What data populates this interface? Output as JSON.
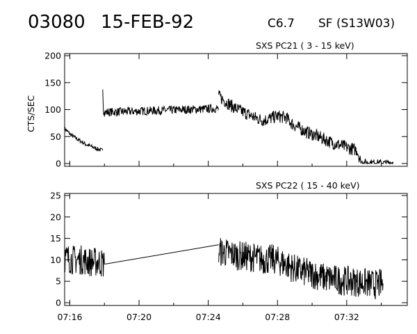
{
  "header": {
    "event_id": "03080",
    "date": "15-FEB-92",
    "goes_class": "C6.7",
    "location": "SF (S13W03)"
  },
  "chart_data": [
    {
      "type": "line",
      "title": "SXS PC21  (  3 - 15 keV)",
      "xlabel": "",
      "ylabel": "CTS/SEC",
      "xlim": [
        "07:15.7",
        "07:35.5"
      ],
      "ylim": [
        0,
        200
      ],
      "yticks": [
        "0",
        "50",
        "100",
        "150",
        "200"
      ],
      "xticks": [
        "07:16",
        "07:20",
        "07:24",
        "07:28",
        "07:32"
      ],
      "series": [
        {
          "segments": [
            {
              "x": [
                0.0,
                0.3,
                0.6,
                0.9,
                1.2,
                1.5,
                1.8,
                2.0,
                2.2
              ],
              "y": [
                65,
                55,
                48,
                42,
                36,
                32,
                28,
                26,
                24
              ]
            },
            {
              "x": [
                2.2,
                2.25,
                2.3
              ],
              "y": [
                140,
                95,
                95
              ]
            },
            {
              "x": [
                2.3,
                8.9
              ],
              "y": [
                95,
                102
              ]
            },
            {
              "x": [
                8.9,
                9.3,
                9.6,
                10.0,
                10.5,
                11.0,
                11.5,
                11.9,
                12.3,
                12.8,
                13.2,
                13.6,
                14.0,
                14.5,
                15.0,
                15.5,
                16.0,
                16.5,
                16.9,
                17.1
              ],
              "y": [
                125,
                115,
                108,
                100,
                93,
                85,
                80,
                84,
                88,
                85,
                72,
                65,
                58,
                52,
                45,
                38,
                33,
                28,
                25,
                5
              ]
            },
            {
              "x": [
                17.1,
                17.5,
                18.0,
                18.5,
                19.0
              ],
              "y": [
                3,
                2,
                2,
                1,
                2
              ]
            }
          ],
          "noise": [
            4,
            6,
            8,
            12,
            6
          ]
        }
      ]
    },
    {
      "type": "line",
      "title": "SXS PC22  ( 15 - 40 keV)",
      "xlabel": "",
      "ylabel": "",
      "xlim": [
        "07:15.7",
        "07:35.5"
      ],
      "ylim": [
        0,
        25
      ],
      "yticks": [
        "0",
        "5",
        "10",
        "15",
        "20",
        "25"
      ],
      "xticks": [
        "07:16",
        "07:20",
        "07:24",
        "07:28",
        "07:32"
      ],
      "series": [
        {
          "segments": [
            {
              "x": [
                0.0,
                0.5,
                1.0,
                1.5,
                2.0,
                2.3
              ],
              "y": [
                10.5,
                10.0,
                10.0,
                9.5,
                9.5,
                9.0
              ]
            },
            {
              "x": [
                2.3,
                8.9
              ],
              "y": [
                9.0,
                13.5
              ]
            },
            {
              "x": [
                8.9,
                9.5,
                10.0,
                10.5,
                11.0,
                11.5,
                12.0,
                12.5,
                13.0,
                13.5,
                14.0,
                14.5,
                15.0,
                15.5,
                16.0,
                16.5,
                17.0,
                17.5,
                18.0,
                18.4
              ],
              "y": [
                12.0,
                11.5,
                11.0,
                10.8,
                10.5,
                10.0,
                10.2,
                9.5,
                8.5,
                7.5,
                7.0,
                6.5,
                5.8,
                5.5,
                5.2,
                5.0,
                4.8,
                4.5,
                4.2,
                4.5
              ]
            }
          ],
          "noise": [
            3.5,
            0,
            3.5
          ]
        }
      ]
    }
  ]
}
